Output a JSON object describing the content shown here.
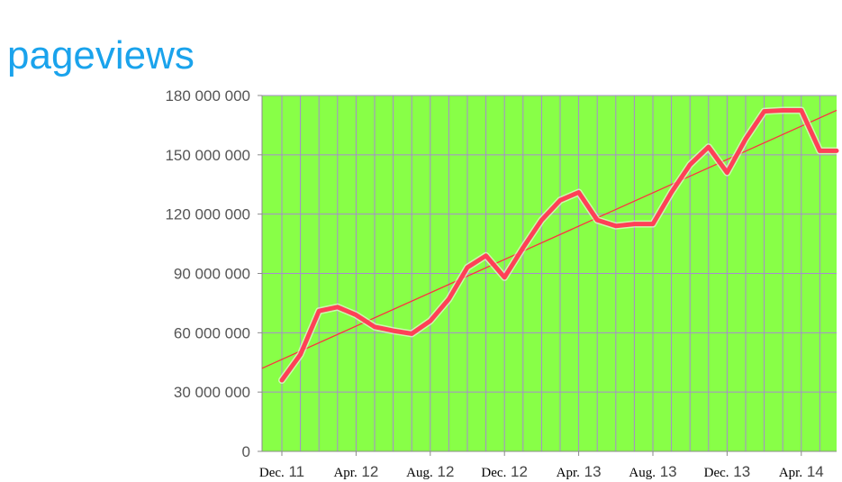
{
  "page": {
    "title": "pageviews"
  },
  "chart_data": {
    "type": "line",
    "title": "pageviews",
    "xlabel": "",
    "ylabel": "",
    "ylim": [
      0,
      180000000
    ],
    "yticks": [
      0,
      30000000,
      60000000,
      90000000,
      120000000,
      150000000,
      180000000
    ],
    "ytick_labels": [
      "0",
      "30 000 000",
      "60 000 000",
      "90 000 000",
      "120 000 000",
      "150 000 000",
      "180 000 000"
    ],
    "x_tick_labels": [
      {
        "month": "Dec.",
        "year": "11"
      },
      {
        "month": "Apr.",
        "year": "12"
      },
      {
        "month": "Aug.",
        "year": "12"
      },
      {
        "month": "Dec.",
        "year": "12"
      },
      {
        "month": "Apr.",
        "year": "13"
      },
      {
        "month": "Aug.",
        "year": "13"
      },
      {
        "month": "Dec.",
        "year": "13"
      },
      {
        "month": "Apr.",
        "year": "14"
      }
    ],
    "x": [
      "Dec. 11",
      "Jan. 12",
      "Feb. 12",
      "Mar. 12",
      "Apr. 12",
      "May 12",
      "Jun. 12",
      "Jul. 12",
      "Aug. 12",
      "Sep. 12",
      "Oct. 12",
      "Nov. 12",
      "Dec. 12",
      "Jan. 13",
      "Feb. 13",
      "Mar. 13",
      "Apr. 13",
      "May 13",
      "Jun. 13",
      "Jul. 13",
      "Aug. 13",
      "Sep. 13",
      "Oct. 13",
      "Nov. 13",
      "Dec. 13",
      "Jan. 14",
      "Feb. 14",
      "Mar. 14",
      "Apr. 14",
      "May 14",
      "Jun. 14"
    ],
    "series": [
      {
        "kind": "data",
        "values": [
          36000000,
          49000000,
          71000000,
          73000000,
          69000000,
          63000000,
          61000000,
          59500000,
          66000000,
          77000000,
          93000000,
          99000000,
          88000000,
          103000000,
          117000000,
          127000000,
          131000000,
          117000000,
          114000000,
          115000000,
          115000000,
          131000000,
          145000000,
          154000000,
          141000000,
          158000000,
          172000000,
          172500000,
          172500000,
          152000000,
          152000000
        ]
      },
      {
        "kind": "linear trend",
        "start": 42000000,
        "end": 172500000
      }
    ],
    "grid": true,
    "legend": "none",
    "colors": {
      "plot_background": "#88ff47",
      "grid": "#a88bcf",
      "series_line": "#ff4057",
      "trend_line": "#ff3040",
      "title": "#1aa3ec"
    }
  }
}
